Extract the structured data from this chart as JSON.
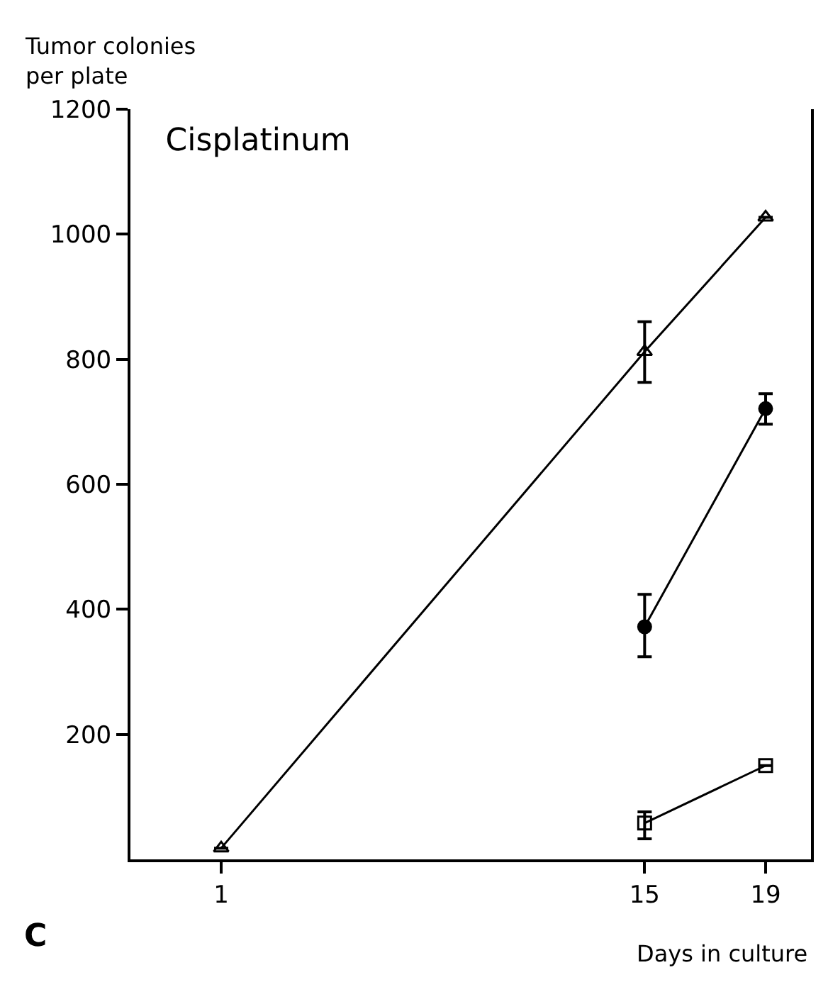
{
  "chart_data": {
    "type": "line",
    "title": "Cisplatinum",
    "ylabel": "Tumor colonies\nper plate",
    "xlabel": "Days in culture",
    "annotations": [
      "C"
    ],
    "xlim": [
      -2,
      20.5
    ],
    "xticks": [
      1,
      15,
      19
    ],
    "ylim": [
      0,
      1200
    ],
    "yticks": [
      200,
      400,
      600,
      800,
      1000,
      1200
    ],
    "line_style": "solid",
    "series": [
      {
        "color": "#000000",
        "marker": "triangle",
        "x": [
          1,
          15,
          19
        ],
        "values": [
          18,
          812,
          1027
        ],
        "errors": [
          null,
          [
            763,
            860
          ],
          null
        ]
      },
      {
        "color": "#000000",
        "marker": "circle",
        "x": [
          15,
          19
        ],
        "values": [
          372,
          721
        ],
        "errors": [
          [
            324,
            424
          ],
          [
            696,
            745
          ]
        ]
      },
      {
        "color": "#000000",
        "marker": "square",
        "x": [
          15,
          19
        ],
        "values": [
          58,
          150
        ],
        "errors": [
          [
            33,
            76
          ],
          null
        ]
      }
    ]
  }
}
